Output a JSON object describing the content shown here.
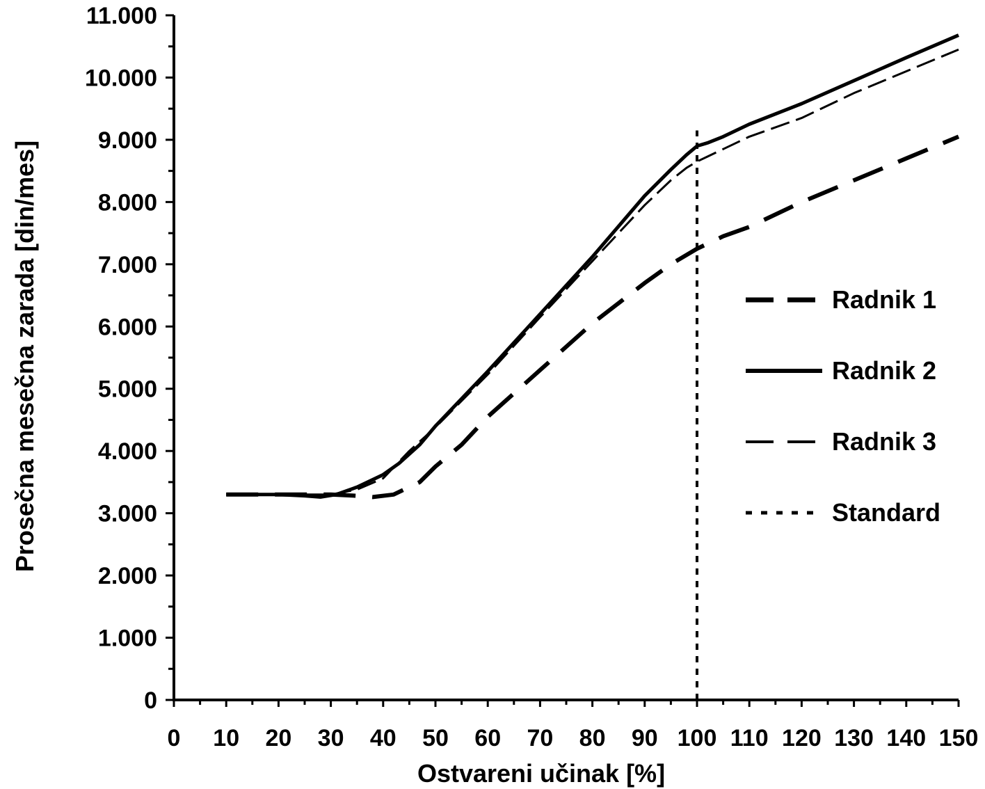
{
  "chart_data": {
    "type": "line",
    "xlabel": "Ostvareni učinak [%]",
    "ylabel": "Prosečna mesečna zarada [din/mes]",
    "xlim": [
      0,
      150
    ],
    "ylim": [
      0,
      11000
    ],
    "x_ticks": [
      "0",
      "10",
      "20",
      "30",
      "40",
      "50",
      "60",
      "70",
      "80",
      "90",
      "100",
      "110",
      "120",
      "130",
      "140",
      "150"
    ],
    "y_ticks": [
      "0",
      "1.000",
      "2.000",
      "3.000",
      "4.000",
      "5.000",
      "6.000",
      "7.000",
      "8.000",
      "9.000",
      "10.000",
      "11.000"
    ],
    "legend_position": "right",
    "grid": false,
    "series": [
      {
        "name": "Radnik 1",
        "style": "dash-long",
        "x": [
          10,
          20,
          30,
          35,
          38,
          42,
          47,
          50,
          55,
          60,
          70,
          80,
          90,
          95,
          100,
          105,
          110,
          120,
          130,
          140,
          150
        ],
        "y": [
          3300,
          3300,
          3300,
          3280,
          3260,
          3300,
          3500,
          3750,
          4100,
          4550,
          5300,
          6050,
          6700,
          7000,
          7250,
          7450,
          7600,
          8000,
          8350,
          8700,
          9050
        ]
      },
      {
        "name": "Radnik 2",
        "style": "solid",
        "x": [
          10,
          20,
          25,
          28,
          31,
          35,
          40,
          43,
          47,
          50,
          60,
          70,
          80,
          90,
          95,
          98,
          100,
          102,
          105,
          110,
          120,
          130,
          140,
          150
        ],
        "y": [
          3300,
          3300,
          3280,
          3260,
          3300,
          3420,
          3620,
          3800,
          4100,
          4400,
          5280,
          6200,
          7120,
          8100,
          8520,
          8760,
          8900,
          8950,
          9050,
          9250,
          9580,
          9950,
          10320,
          10680
        ]
      },
      {
        "name": "Radnik 3",
        "style": "dash-short",
        "x": [
          10,
          20,
          30,
          35,
          40,
          45,
          50,
          60,
          70,
          80,
          90,
          95,
          98,
          100,
          105,
          110,
          120,
          130,
          140,
          150
        ],
        "y": [
          3300,
          3300,
          3300,
          3380,
          3560,
          4000,
          4380,
          5230,
          6150,
          7050,
          7950,
          8350,
          8550,
          8650,
          8850,
          9050,
          9350,
          9750,
          10100,
          10450
        ]
      },
      {
        "name": "Standard",
        "style": "dotted",
        "x": [
          100,
          100
        ],
        "y": [
          0,
          9150
        ]
      }
    ]
  }
}
